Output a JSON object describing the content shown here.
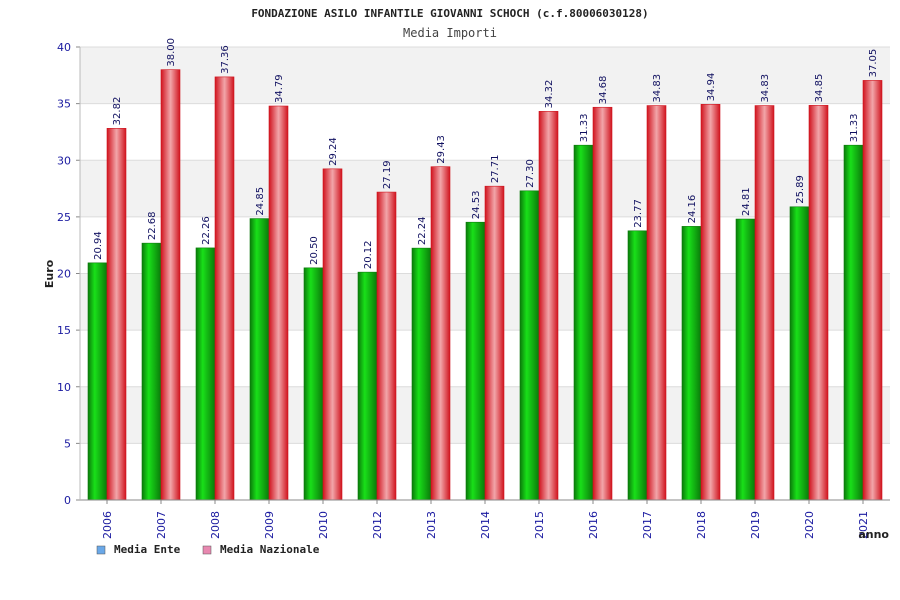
{
  "colors": {
    "ente_dark": "#0a7a0a",
    "ente_light": "#19e019",
    "naz_dark": "#d0141e",
    "naz_light": "#f2a6aa",
    "legend_ente": "#6aa8e8",
    "legend_naz": "#e888b0",
    "band": "#f2f2f2",
    "tick_text": "#1a1aa0"
  },
  "chart_data": {
    "type": "bar",
    "title": "FONDAZIONE ASILO INFANTILE GIOVANNI SCHOCH (c.f.80006030128)",
    "subtitle": "Media Importi",
    "xlabel": "anno",
    "ylabel": "Euro",
    "ylim": [
      0,
      40
    ],
    "yticks": [
      "0",
      "5",
      "10",
      "15",
      "20",
      "25",
      "30",
      "35",
      "40"
    ],
    "grid": true,
    "legend_position": "bottom-left",
    "categories": [
      "2006",
      "2007",
      "2008",
      "2009",
      "2010",
      "2012",
      "2013",
      "2014",
      "2015",
      "2016",
      "2017",
      "2018",
      "2019",
      "2020",
      "2021"
    ],
    "series": [
      {
        "name": "Media Ente",
        "values": [
          20.94,
          22.68,
          22.26,
          24.85,
          20.5,
          20.12,
          22.24,
          24.53,
          27.3,
          31.33,
          23.77,
          24.16,
          24.81,
          25.89,
          31.33
        ],
        "labels": [
          "20.94",
          "22.68",
          "22.26",
          "24.85",
          "20.50",
          "20.12",
          "22.24",
          "24.53",
          "27.30",
          "31.33",
          "23.77",
          "24.16",
          "24.81",
          "25.89",
          "31.33"
        ]
      },
      {
        "name": "Media Nazionale",
        "values": [
          32.82,
          38.0,
          37.36,
          34.79,
          29.24,
          27.19,
          29.43,
          27.71,
          34.32,
          34.68,
          34.83,
          34.94,
          34.83,
          34.85,
          37.05
        ],
        "labels": [
          "32.82",
          "38.00",
          "37.36",
          "34.79",
          "29.24",
          "27.19",
          "29.43",
          "27.71",
          "34.32",
          "34.68",
          "34.83",
          "34.94",
          "34.83",
          "34.85",
          "37.05"
        ]
      }
    ]
  }
}
